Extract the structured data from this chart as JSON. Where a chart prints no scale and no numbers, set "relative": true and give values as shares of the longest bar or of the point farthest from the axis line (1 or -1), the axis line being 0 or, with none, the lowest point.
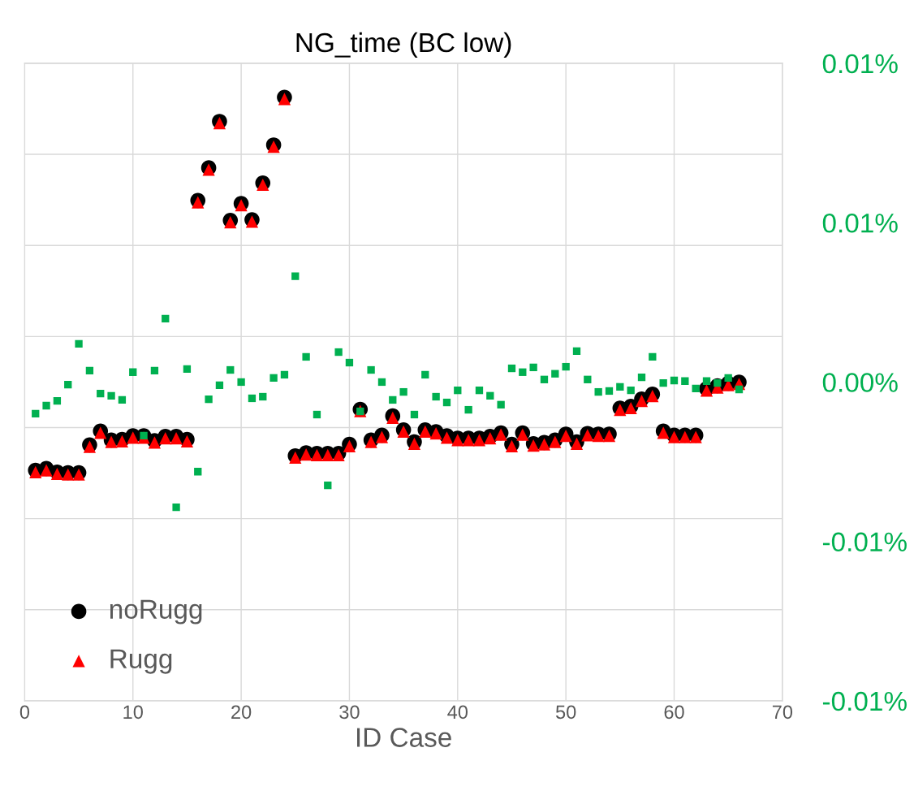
{
  "chart_data": {
    "type": "scatter",
    "title": "NG_time (BC low)",
    "xlabel": "ID Case",
    "relative": true,
    "grid": true,
    "legend": "bottom left",
    "xlim": [
      0,
      70
    ],
    "xticks": [
      0,
      10,
      20,
      30,
      40,
      50,
      60,
      70
    ],
    "y2lim": [
      -0.01,
      0.01
    ],
    "y2ticks": [
      {
        "value": 0.01,
        "label": "0.01%"
      },
      {
        "value": 0.005,
        "label": "0.01%"
      },
      {
        "value": 0,
        "label": "0.00%"
      },
      {
        "value": -0.005,
        "label": "-0.01%"
      },
      {
        "value": -0.01,
        "label": "-0.01%"
      }
    ],
    "x": [
      1,
      2,
      3,
      4,
      5,
      6,
      7,
      8,
      9,
      10,
      11,
      12,
      13,
      14,
      15,
      16,
      17,
      18,
      19,
      20,
      21,
      22,
      23,
      24,
      25,
      26,
      27,
      28,
      29,
      30,
      31,
      32,
      33,
      34,
      35,
      36,
      37,
      38,
      39,
      40,
      41,
      42,
      43,
      44,
      45,
      46,
      47,
      48,
      49,
      50,
      51,
      52,
      53,
      54,
      55,
      56,
      57,
      58,
      59,
      60,
      61,
      62,
      63,
      64,
      65,
      66
    ],
    "series": [
      {
        "name": "noRugg",
        "color": "#000000",
        "marker": "circle",
        "values": [
          0.382,
          0.385,
          0.379,
          0.378,
          0.378,
          0.424,
          0.447,
          0.432,
          0.433,
          0.439,
          0.439,
          0.431,
          0.438,
          0.438,
          0.433,
          0.829,
          0.883,
          0.96,
          0.796,
          0.824,
          0.797,
          0.858,
          0.921,
          1,
          0.406,
          0.411,
          0.41,
          0.41,
          0.41,
          0.425,
          0.483,
          0.432,
          0.44,
          0.472,
          0.449,
          0.429,
          0.449,
          0.446,
          0.439,
          0.435,
          0.435,
          0.435,
          0.438,
          0.444,
          0.425,
          0.444,
          0.426,
          0.428,
          0.432,
          0.442,
          0.429,
          0.443,
          0.442,
          0.442,
          0.485,
          0.488,
          0.5,
          0.508,
          0.447,
          0.44,
          0.44,
          0.44,
          0.517,
          0.522,
          0.526,
          0.528
        ]
      },
      {
        "name": "Rugg",
        "color": "#ff0000",
        "marker": "triangle",
        "values": [
          0.379,
          0.382,
          0.376,
          0.375,
          0.375,
          0.421,
          0.444,
          0.429,
          0.43,
          0.436,
          0.436,
          0.428,
          0.435,
          0.435,
          0.43,
          0.826,
          0.88,
          0.957,
          0.793,
          0.821,
          0.794,
          0.855,
          0.918,
          0.997,
          0.403,
          0.408,
          0.407,
          0.407,
          0.407,
          0.422,
          0.48,
          0.429,
          0.437,
          0.469,
          0.446,
          0.426,
          0.446,
          0.443,
          0.436,
          0.432,
          0.432,
          0.432,
          0.435,
          0.441,
          0.422,
          0.441,
          0.423,
          0.425,
          0.429,
          0.439,
          0.426,
          0.44,
          0.439,
          0.439,
          0.482,
          0.485,
          0.497,
          0.505,
          0.444,
          0.437,
          0.437,
          0.437,
          0.514,
          0.519,
          0.523,
          0.525
        ]
      },
      {
        "color": "#00b050",
        "marker": "square",
        "axis": "y2",
        "values": [
          -0.00099,
          -0.00074,
          -0.00059,
          -8e-05,
          0.0012,
          0.00036,
          -0.00036,
          -0.00043,
          -0.00056,
          0.00031,
          -0.00168,
          0.00036,
          0.00199,
          -0.00393,
          0.00041,
          -0.00281,
          -0.00054,
          -0.0001,
          0.00038,
          0,
          -0.00051,
          -0.00046,
          0.00013,
          0.00023,
          0.00332,
          0.00079,
          -0.00102,
          -0.00324,
          0.00094,
          0.00061,
          -0.00092,
          0.00038,
          0,
          -0.00056,
          -0.00031,
          -0.00102,
          0.00023,
          -0.00046,
          -0.00064,
          -0.00026,
          -0.00087,
          -0.00026,
          -0.00043,
          -0.00071,
          0.00043,
          0.00031,
          0.00046,
          8e-05,
          0.00026,
          0.00048,
          0.00097,
          8e-05,
          -0.00031,
          -0.00028,
          -0.00015,
          -0.00026,
          0.00015,
          0.00079,
          -3e-05,
          5e-05,
          3e-05,
          -0.0002,
          3e-05,
          -3e-05,
          0.00013,
          -0.00023
        ]
      }
    ]
  }
}
